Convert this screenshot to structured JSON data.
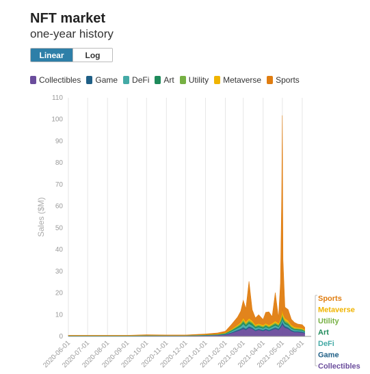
{
  "header": {
    "title": "NFT market",
    "subtitle": "one-year history"
  },
  "scale_toggle": {
    "linear_label": "Linear",
    "log_label": "Log",
    "selected": "Linear"
  },
  "colors": {
    "Collectibles": "#6a4c9c",
    "Game": "#1f5f86",
    "DeFi": "#44aaa6",
    "Art": "#1e8a5a",
    "Utility": "#76b043",
    "Metaverse": "#f0b400",
    "Sports": "#e07d10"
  },
  "chart_data": {
    "type": "area",
    "stacked": true,
    "title": "NFT market",
    "subtitle": "one-year history",
    "ylabel": "Sales ($M)",
    "xlabel": "",
    "ylim": [
      0,
      110
    ],
    "y_ticks": [
      0,
      10,
      20,
      30,
      40,
      50,
      60,
      70,
      80,
      90,
      100,
      110
    ],
    "x_tick_labels": [
      "2020-06-01",
      "2020-07-01",
      "2020-08-01",
      "2020-09-01",
      "2020-10-01",
      "2020-11-01",
      "2020-12-01",
      "2021-01-01",
      "2021-02-01",
      "2021-03-01",
      "2021-04-01",
      "2021-05-01",
      "2021-06-01"
    ],
    "x_range": [
      "2020-06-01",
      "2021-06-15"
    ],
    "grid": "vertical",
    "legend_position": "top",
    "series_order": [
      "Collectibles",
      "Game",
      "DeFi",
      "Art",
      "Utility",
      "Metaverse",
      "Sports"
    ],
    "x": [
      "2020-06-01",
      "2020-07-01",
      "2020-08-01",
      "2020-09-01",
      "2020-10-01",
      "2020-11-01",
      "2020-12-01",
      "2021-01-01",
      "2021-01-20",
      "2021-02-01",
      "2021-02-10",
      "2021-02-20",
      "2021-02-25",
      "2021-03-01",
      "2021-03-05",
      "2021-03-10",
      "2021-03-15",
      "2021-03-20",
      "2021-03-25",
      "2021-04-01",
      "2021-04-05",
      "2021-04-10",
      "2021-04-15",
      "2021-04-20",
      "2021-04-25",
      "2021-04-28",
      "2021-04-30",
      "2021-05-01",
      "2021-05-02",
      "2021-05-05",
      "2021-05-10",
      "2021-05-15",
      "2021-05-20",
      "2021-05-25",
      "2021-06-01",
      "2021-06-05"
    ],
    "series": [
      {
        "name": "Collectibles",
        "values": [
          0.2,
          0.2,
          0.2,
          0.2,
          0.3,
          0.3,
          0.3,
          0.4,
          0.6,
          0.8,
          1.5,
          2.5,
          3.0,
          3.5,
          3.0,
          4.0,
          3.5,
          2.5,
          3.0,
          2.5,
          3.0,
          2.5,
          3.0,
          3.5,
          3.0,
          4.0,
          5.0,
          6.0,
          5.0,
          4.0,
          3.5,
          2.5,
          2.0,
          2.0,
          1.8,
          1.5
        ]
      },
      {
        "name": "Game",
        "values": [
          0.05,
          0.05,
          0.05,
          0.05,
          0.05,
          0.05,
          0.05,
          0.1,
          0.1,
          0.2,
          0.3,
          0.5,
          0.6,
          0.8,
          0.6,
          0.7,
          0.6,
          0.5,
          0.5,
          0.5,
          0.6,
          0.5,
          0.6,
          0.7,
          0.6,
          0.8,
          1.0,
          1.2,
          1.0,
          0.8,
          0.7,
          0.5,
          0.4,
          0.4,
          0.4,
          0.3
        ]
      },
      {
        "name": "DeFi",
        "values": [
          0.05,
          0.05,
          0.05,
          0.05,
          0.1,
          0.05,
          0.05,
          0.1,
          0.1,
          0.2,
          0.5,
          0.8,
          1.0,
          1.5,
          1.0,
          1.2,
          1.0,
          0.8,
          0.8,
          0.7,
          0.8,
          0.7,
          0.8,
          0.9,
          0.8,
          1.0,
          1.2,
          1.5,
          1.2,
          1.0,
          0.9,
          0.7,
          0.6,
          0.5,
          0.5,
          0.4
        ]
      },
      {
        "name": "Art",
        "values": [
          0.05,
          0.05,
          0.05,
          0.05,
          0.05,
          0.05,
          0.05,
          0.1,
          0.1,
          0.2,
          0.4,
          0.6,
          0.8,
          1.0,
          0.8,
          0.9,
          0.8,
          0.6,
          0.6,
          0.5,
          0.6,
          0.5,
          0.6,
          0.7,
          0.6,
          0.8,
          1.0,
          1.2,
          1.0,
          0.8,
          0.7,
          0.5,
          0.4,
          0.4,
          0.4,
          0.3
        ]
      },
      {
        "name": "Utility",
        "values": [
          0.05,
          0.05,
          0.05,
          0.05,
          0.05,
          0.05,
          0.05,
          0.05,
          0.1,
          0.2,
          0.3,
          0.5,
          0.6,
          0.8,
          0.6,
          0.7,
          0.6,
          0.5,
          0.5,
          0.5,
          0.5,
          0.5,
          0.5,
          0.6,
          0.5,
          0.7,
          0.8,
          1.0,
          0.8,
          0.7,
          0.6,
          0.5,
          0.4,
          0.4,
          0.3,
          0.3
        ]
      },
      {
        "name": "Metaverse",
        "values": [
          0.05,
          0.05,
          0.05,
          0.05,
          0.05,
          0.05,
          0.05,
          0.1,
          0.1,
          0.2,
          0.3,
          0.5,
          0.6,
          1.0,
          0.8,
          0.9,
          0.8,
          0.6,
          0.6,
          0.6,
          0.6,
          0.6,
          0.6,
          0.8,
          0.6,
          1.0,
          1.5,
          2.0,
          1.5,
          1.2,
          1.0,
          0.7,
          0.6,
          0.5,
          0.5,
          0.4
        ]
      },
      {
        "name": "Sports",
        "values": [
          0.05,
          0.05,
          0.05,
          0.05,
          0.2,
          0.1,
          0.1,
          0.3,
          0.5,
          0.6,
          2.0,
          3.5,
          5.0,
          8.0,
          6.0,
          17.0,
          5.0,
          3.0,
          4.0,
          2.5,
          5.0,
          6.0,
          3.0,
          13.0,
          2.5,
          16.0,
          55.0,
          89.0,
          25.0,
          5.0,
          5.0,
          2.5,
          2.0,
          1.5,
          1.5,
          1.0
        ]
      }
    ]
  },
  "end_labels": [
    "Sports",
    "Metaverse",
    "Utility",
    "Art",
    "DeFi",
    "Game",
    "Collectibles"
  ]
}
